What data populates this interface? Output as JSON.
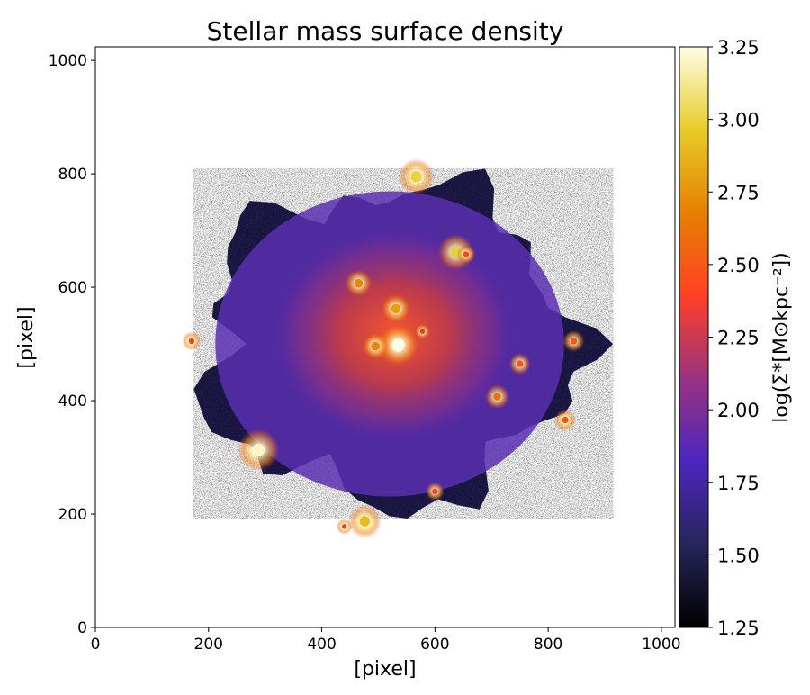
{
  "chart_data": {
    "type": "heatmap",
    "title": "Stellar mass surface density",
    "xlabel": "[pixel]",
    "ylabel": "[pixel]",
    "xlim": [
      0,
      1024
    ],
    "ylim": [
      0,
      1024
    ],
    "x_ticks": [
      "0",
      "200",
      "400",
      "600",
      "800",
      "1000"
    ],
    "y_ticks": [
      "0",
      "200",
      "400",
      "600",
      "800",
      "1000"
    ],
    "colorbar": {
      "label": "log(Σ*[M⊙kpc⁻²])",
      "range": [
        1.25,
        3.25
      ],
      "ticks": [
        "1.25",
        "1.50",
        "1.75",
        "2.00",
        "2.25",
        "2.50",
        "2.75",
        "3.00",
        "3.25"
      ],
      "colormap": "CMRmap",
      "colormap_stops": [
        "#000000",
        "#26265a",
        "#4d26bf",
        "#993380",
        "#ff4026",
        "#e68000",
        "#e6cc26",
        "#fffde6"
      ]
    },
    "galaxy": {
      "center": [
        520,
        500
      ],
      "extent_x": [
        140,
        930
      ],
      "extent_y": [
        170,
        860
      ],
      "bright_sources": [
        {
          "x": 535,
          "y": 498,
          "level": 3.25
        },
        {
          "x": 288,
          "y": 313,
          "level": 3.2
        },
        {
          "x": 567,
          "y": 795,
          "level": 3.0
        },
        {
          "x": 637,
          "y": 662,
          "level": 3.0
        },
        {
          "x": 476,
          "y": 187,
          "level": 2.9
        },
        {
          "x": 531,
          "y": 562,
          "level": 2.8
        },
        {
          "x": 495,
          "y": 496,
          "level": 2.7
        },
        {
          "x": 465,
          "y": 607,
          "level": 2.7
        },
        {
          "x": 710,
          "y": 407,
          "level": 2.6
        },
        {
          "x": 750,
          "y": 465,
          "level": 2.5
        },
        {
          "x": 845,
          "y": 505,
          "level": 2.5
        },
        {
          "x": 830,
          "y": 366,
          "level": 2.5
        },
        {
          "x": 600,
          "y": 240,
          "level": 2.4
        },
        {
          "x": 170,
          "y": 505,
          "level": 2.4
        },
        {
          "x": 655,
          "y": 658,
          "level": 2.4
        },
        {
          "x": 440,
          "y": 178,
          "level": 2.3
        },
        {
          "x": 578,
          "y": 522,
          "level": 2.3
        }
      ]
    }
  }
}
